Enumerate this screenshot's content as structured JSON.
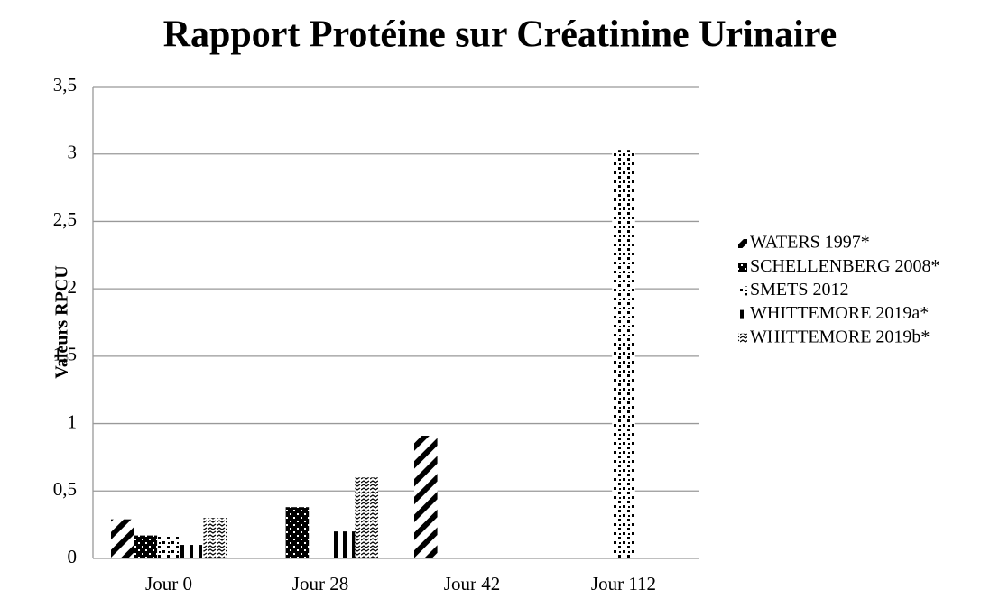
{
  "chart_data": {
    "type": "bar",
    "title": "Rapport Protéine sur Créatinine Urinaire",
    "y_label": "Valeurs RPCU",
    "categories": [
      "Jour 0",
      "Jour 28",
      "Jour 42",
      "Jour 112"
    ],
    "series": [
      {
        "name": "WATERS 1997*",
        "color": "#000000",
        "values": [
          0.29,
          null,
          0.91,
          null
        ]
      },
      {
        "name": "SCHELLENBERG 2008*",
        "color": "#000000",
        "values": [
          0.17,
          0.38,
          null,
          null
        ]
      },
      {
        "name": "SMETS 2012",
        "color": "#000000",
        "values": [
          0.17,
          null,
          null,
          3.03
        ]
      },
      {
        "name": "WHITTEMORE 2019a*",
        "color": "#000000",
        "values": [
          0.1,
          0.2,
          null,
          null
        ]
      },
      {
        "name": "WHITTEMORE 2019b*",
        "color": "#000000",
        "values": [
          0.3,
          0.6,
          null,
          null
        ]
      }
    ],
    "ylim": [
      0,
      3.5
    ],
    "yticks": [
      0,
      {
        "value": 0.5,
        "label": "0,5"
      },
      1,
      {
        "value": 1.5,
        "label": "1,5"
      },
      2,
      {
        "value": 2.5,
        "label": "2,5"
      },
      3,
      {
        "value": 3.5,
        "label": "3,5"
      }
    ],
    "grid": true,
    "legend": "right"
  }
}
